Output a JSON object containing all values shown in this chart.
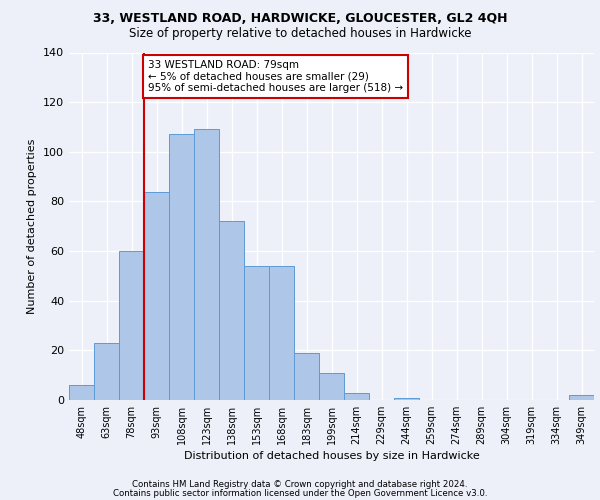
{
  "title1": "33, WESTLAND ROAD, HARDWICKE, GLOUCESTER, GL2 4QH",
  "title2": "Size of property relative to detached houses in Hardwicke",
  "xlabel": "Distribution of detached houses by size in Hardwicke",
  "ylabel": "Number of detached properties",
  "categories": [
    "48sqm",
    "63sqm",
    "78sqm",
    "93sqm",
    "108sqm",
    "123sqm",
    "138sqm",
    "153sqm",
    "168sqm",
    "183sqm",
    "199sqm",
    "214sqm",
    "229sqm",
    "244sqm",
    "259sqm",
    "274sqm",
    "289sqm",
    "304sqm",
    "319sqm",
    "334sqm",
    "349sqm"
  ],
  "values": [
    6,
    23,
    60,
    84,
    107,
    109,
    72,
    54,
    54,
    19,
    11,
    3,
    0,
    1,
    0,
    0,
    0,
    0,
    0,
    0,
    2
  ],
  "bar_color": "#aec6e8",
  "bar_edge_color": "#5b9bd5",
  "vline_x": 2.5,
  "vline_color": "#cc0000",
  "annotation_text": "33 WESTLAND ROAD: 79sqm\n← 5% of detached houses are smaller (29)\n95% of semi-detached houses are larger (518) →",
  "annotation_box_color": "#ffffff",
  "annotation_box_edge": "#cc0000",
  "ylim": [
    0,
    140
  ],
  "yticks": [
    0,
    20,
    40,
    60,
    80,
    100,
    120,
    140
  ],
  "background_color": "#edf0f9",
  "grid_color": "#ffffff",
  "footer1": "Contains HM Land Registry data © Crown copyright and database right 2024.",
  "footer2": "Contains public sector information licensed under the Open Government Licence v3.0."
}
